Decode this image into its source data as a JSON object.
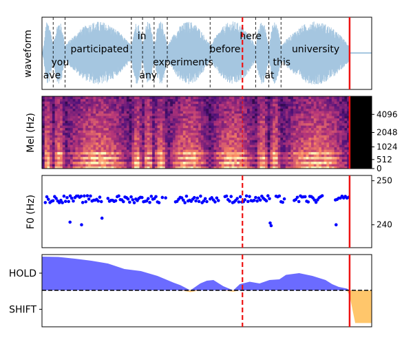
{
  "chart_data": [
    {
      "panel": "waveform",
      "type": "line",
      "ylabel": "waveform",
      "duration": 10.0,
      "active_until": 9.33,
      "line_color": "#a5c6e0",
      "words": [
        {
          "text": "have",
          "x": 0.21,
          "row": 3
        },
        {
          "text": "you",
          "x": 0.55,
          "row": 2
        },
        {
          "text": "participated",
          "x": 1.75,
          "row": 1
        },
        {
          "text": "in",
          "x": 3.03,
          "row": 0
        },
        {
          "text": "any",
          "x": 3.22,
          "row": 3
        },
        {
          "text": "experiments",
          "x": 4.28,
          "row": 2
        },
        {
          "text": "before",
          "x": 5.55,
          "row": 1
        },
        {
          "text": "here",
          "x": 6.33,
          "row": 0
        },
        {
          "text": "at",
          "x": 6.9,
          "row": 3
        },
        {
          "text": "this",
          "x": 7.27,
          "row": 2
        },
        {
          "text": "university",
          "x": 8.3,
          "row": 1
        }
      ],
      "word_boundaries": [
        0.34,
        0.7,
        2.71,
        3.05,
        3.4,
        3.8,
        5.1,
        6.48,
        6.88,
        7.25
      ],
      "pause_marker": 6.08,
      "shift_marker": 9.33
    },
    {
      "panel": "mel",
      "type": "heatmap",
      "ylabel": "Mel (Hz)",
      "yticks": [
        "0",
        "512",
        "1024",
        "2048",
        "4096"
      ],
      "yticks_pos": [
        0,
        0.125,
        0.3,
        0.5,
        0.75
      ],
      "active_until": 9.33
    },
    {
      "panel": "f0",
      "type": "scatter",
      "ylabel": "F0 (Hz)",
      "ylim": [
        234.8,
        251.2
      ],
      "yticks": [
        240,
        250
      ],
      "point_color": "#0000ff",
      "segments": [
        [
          0.1,
          0.95
        ],
        [
          1.0,
          1.8
        ],
        [
          2.0,
          3.55
        ],
        [
          3.65,
          3.75
        ],
        [
          4.05,
          5.0
        ],
        [
          5.1,
          5.35
        ],
        [
          5.55,
          6.9
        ],
        [
          7.1,
          7.35
        ],
        [
          7.65,
          8.5
        ],
        [
          8.9,
          9.3
        ]
      ],
      "outliers": [
        [
          0.85,
          240.6
        ],
        [
          1.2,
          240.0
        ],
        [
          1.82,
          241.5
        ],
        [
          6.92,
          240.4
        ],
        [
          6.95,
          239.8
        ],
        [
          8.92,
          240.0
        ]
      ]
    },
    {
      "panel": "vad",
      "type": "area",
      "yticks": [
        "HOLD",
        "SHIFT"
      ],
      "hold_color": "#6b6bff",
      "shift_color": "#ffc66b",
      "baseline_style": "dashed",
      "series": [
        {
          "x": [
            0.0,
            0.5,
            1.0,
            1.5,
            2.0,
            2.5,
            3.0,
            3.5,
            4.0,
            4.2,
            4.5,
            4.8,
            5.0,
            5.2,
            5.5,
            5.8,
            6.0,
            6.3,
            6.6,
            6.9,
            7.2,
            7.4,
            7.8,
            8.2,
            8.6,
            8.8,
            9.0,
            9.25,
            9.33,
            9.5,
            10.0
          ],
          "y": [
            0.98,
            0.97,
            0.92,
            0.86,
            0.78,
            0.62,
            0.56,
            0.42,
            0.22,
            0.15,
            -0.05,
            0.2,
            0.28,
            0.3,
            0.12,
            -0.04,
            0.18,
            0.25,
            0.2,
            0.3,
            0.32,
            0.45,
            0.5,
            0.42,
            0.3,
            0.18,
            0.1,
            0.05,
            -0.15,
            -0.95,
            -0.95
          ]
        }
      ]
    }
  ]
}
